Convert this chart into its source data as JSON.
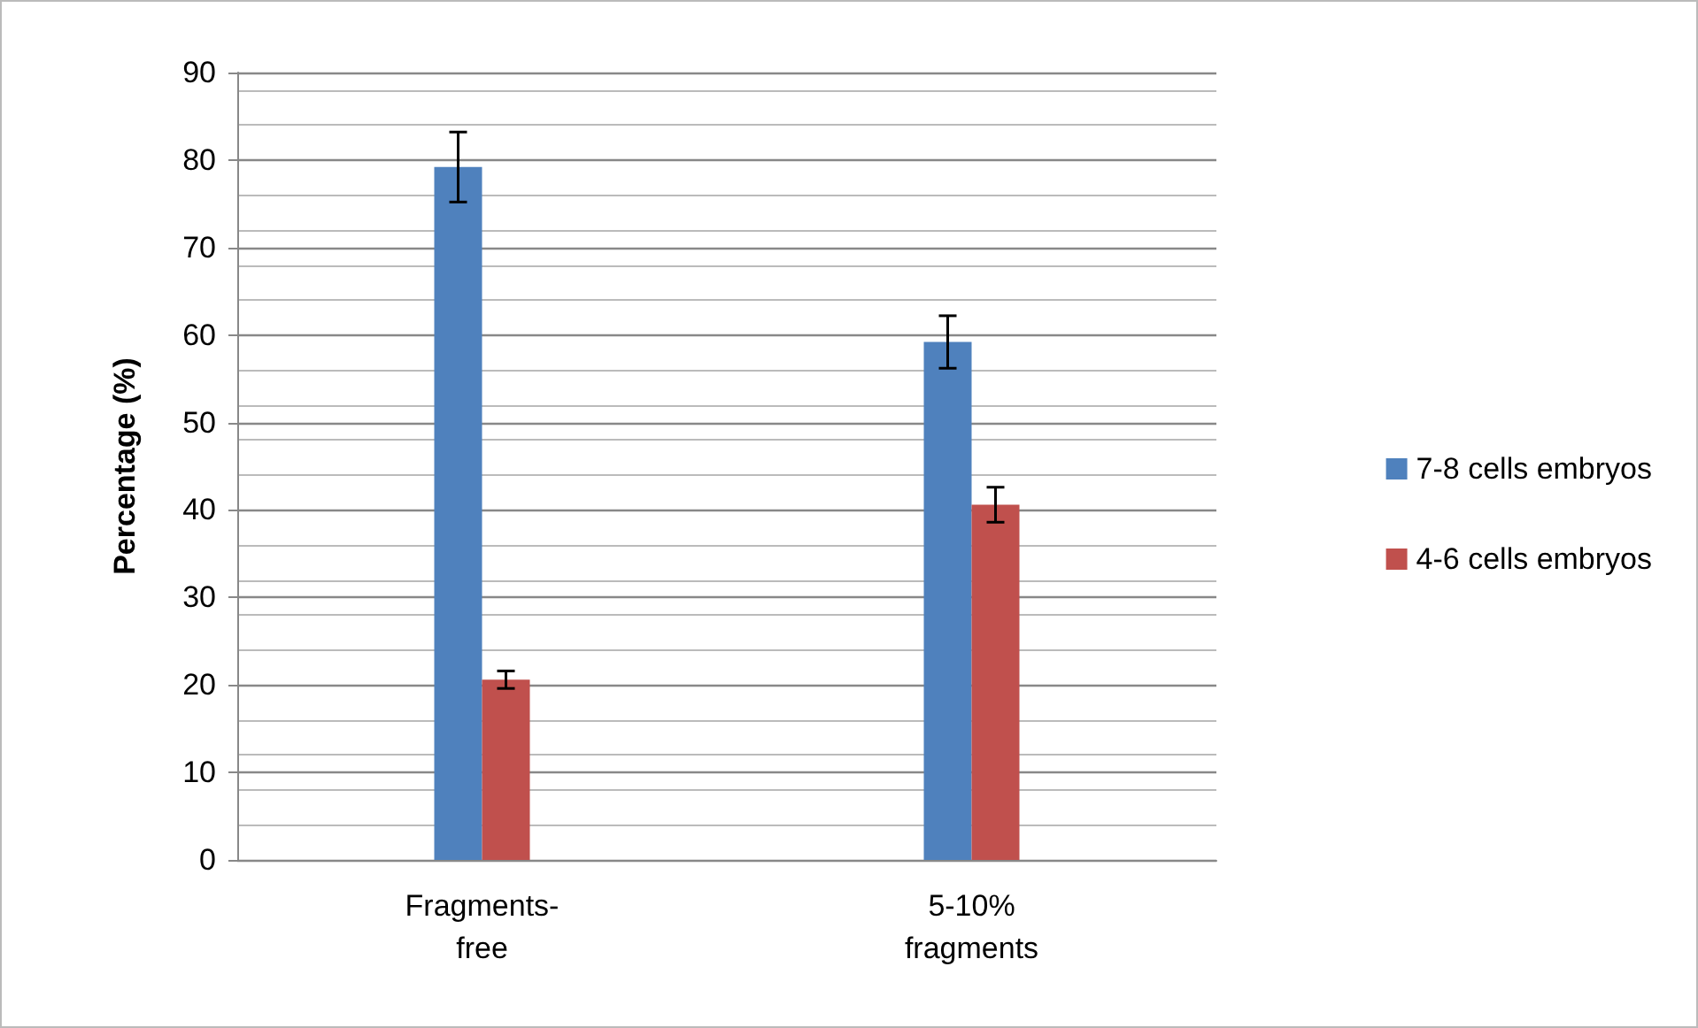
{
  "chart_data": {
    "type": "bar",
    "ylabel": "Percentage (%)",
    "categories": [
      "Fragments-\nfree",
      "5-10%\nfragments"
    ],
    "series": [
      {
        "name": "7-8 cells embryos",
        "color": "#4f81bd",
        "values": [
          79.2,
          59.2
        ],
        "errors": [
          4,
          3
        ]
      },
      {
        "name": "4-6 cells embryos",
        "color": "#c0504d",
        "values": [
          20.6,
          40.6
        ],
        "errors": [
          1,
          2
        ]
      }
    ],
    "ylim": [
      0,
      90
    ],
    "yticks": [
      0,
      10,
      20,
      30,
      40,
      50,
      60,
      70,
      80,
      90
    ],
    "grid": true,
    "legend": "right"
  }
}
